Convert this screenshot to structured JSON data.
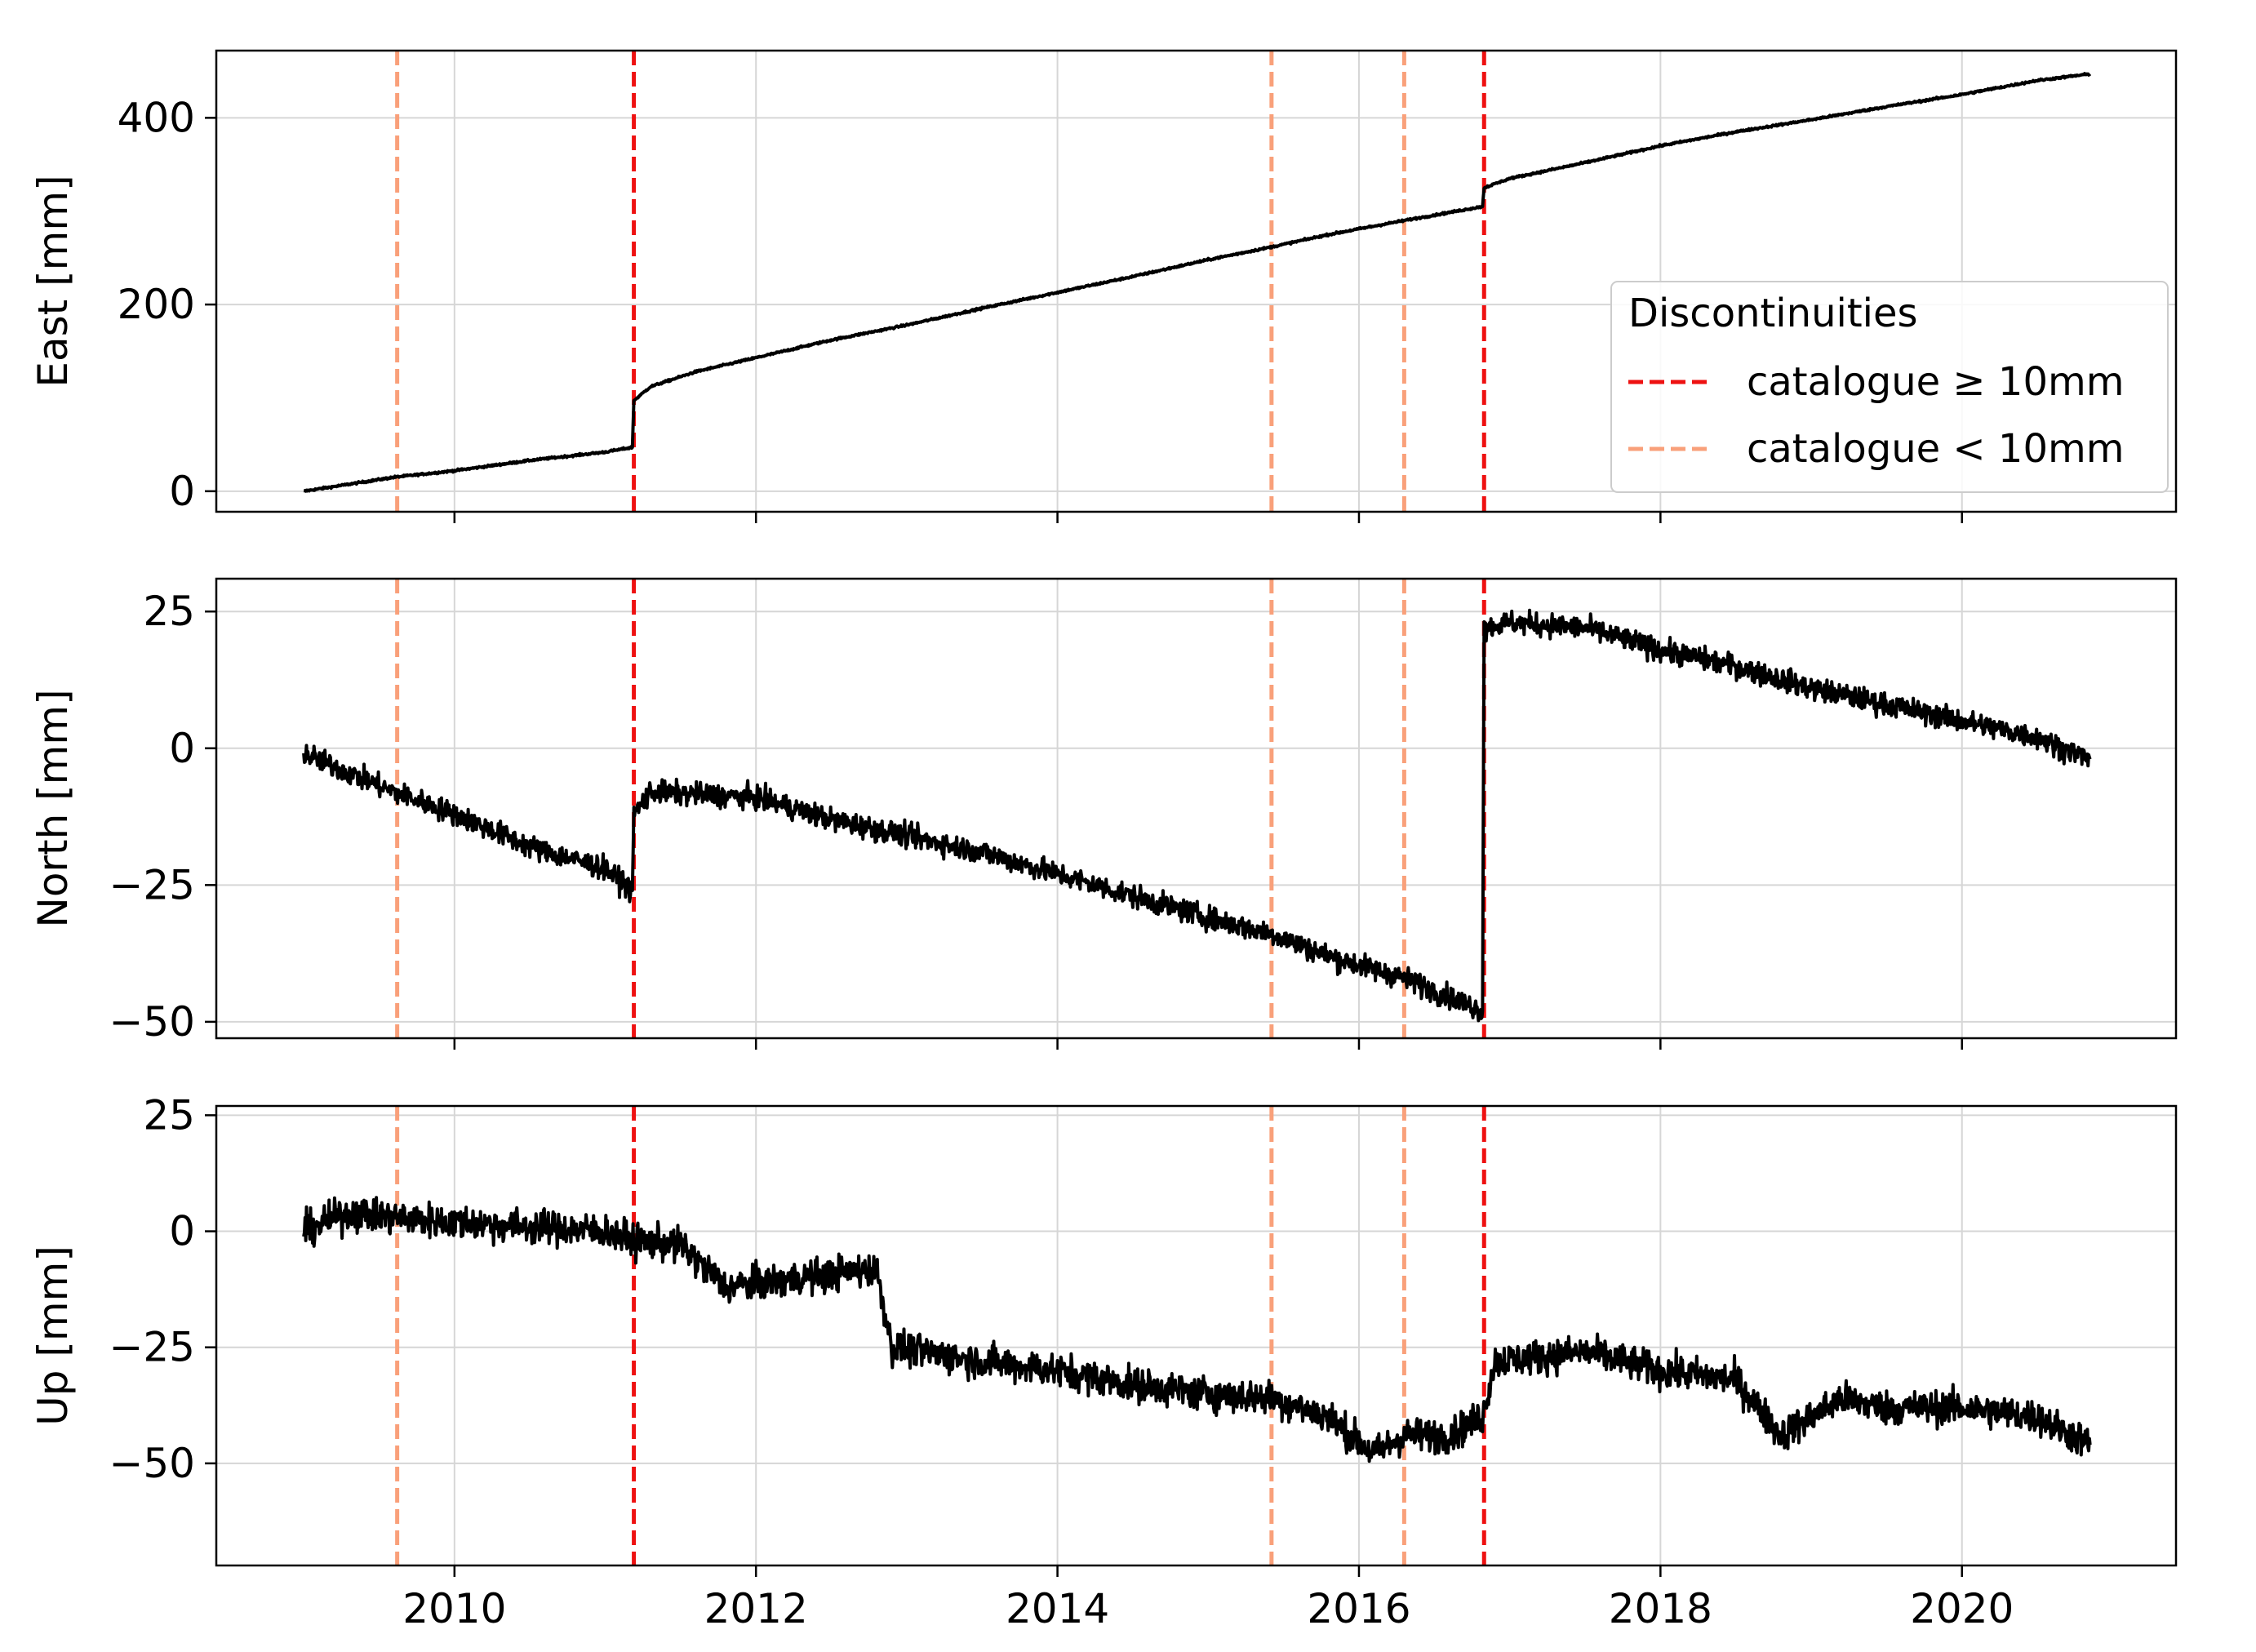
{
  "chart_data": [
    {
      "type": "line",
      "panel": "east",
      "ylabel": "East [mm]",
      "ylim": [
        -22,
        472
      ],
      "yticks": [
        0,
        200,
        400
      ],
      "ytick_labels": [
        "0",
        "200",
        "400"
      ],
      "series": [
        {
          "color": "#000000",
          "x": [
            2009.0,
            2009.6,
            2010.0,
            2010.5,
            2011.0,
            2011.18,
            2011.19,
            2011.3,
            2011.6,
            2012.0,
            2012.5,
            2013.0,
            2013.5,
            2014.0,
            2014.5,
            2015.0,
            2015.43,
            2015.8,
            2016.3,
            2016.82,
            2016.83,
            2017.0,
            2017.5,
            2018.0,
            2018.5,
            2019.0,
            2019.5,
            2020.0,
            2020.5,
            2020.85
          ],
          "y": [
            0,
            15,
            22,
            33,
            42,
            47,
            97,
            112,
            128,
            143,
            162,
            178,
            196,
            213,
            230,
            248,
            262,
            275,
            290,
            305,
            325,
            335,
            352,
            370,
            385,
            398,
            412,
            425,
            440,
            447
          ]
        }
      ],
      "noise_amplitude": 2
    },
    {
      "type": "line",
      "panel": "north",
      "ylabel": "North [mm]",
      "ylim": [
        -53,
        31
      ],
      "yticks": [
        -50,
        -25,
        0,
        25
      ],
      "ytick_labels": [
        "−50",
        "−25",
        "0",
        "25"
      ],
      "series": [
        {
          "color": "#000000",
          "x": [
            2009.0,
            2009.6,
            2010.0,
            2010.5,
            2011.0,
            2011.18,
            2011.19,
            2011.3,
            2012.0,
            2012.5,
            2013.0,
            2013.5,
            2014.0,
            2014.5,
            2015.0,
            2015.43,
            2015.8,
            2016.3,
            2016.82,
            2016.83,
            2017.0,
            2017.5,
            2018.0,
            2018.5,
            2019.0,
            2019.5,
            2020.0,
            2020.5,
            2020.85
          ],
          "y": [
            -1,
            -8,
            -12,
            -18,
            -22,
            -26,
            -12,
            -8,
            -9,
            -13,
            -16,
            -19,
            -23,
            -27,
            -31,
            -34,
            -38,
            -42,
            -48,
            22,
            23,
            22,
            18,
            15,
            11,
            8,
            5,
            2,
            -2
          ]
        }
      ],
      "noise_amplitude": 4
    },
    {
      "type": "line",
      "panel": "up",
      "ylabel": "Up [mm]",
      "ylim": [
        -72,
        27
      ],
      "yticks": [
        -50,
        -25,
        0,
        25
      ],
      "ytick_labels": [
        "−50",
        "−25",
        "0",
        "25"
      ],
      "series": [
        {
          "color": "#000000",
          "x": [
            2009.0,
            2009.3,
            2009.6,
            2010.0,
            2010.5,
            2011.0,
            2011.18,
            2011.5,
            2011.8,
            2012.3,
            2012.8,
            2012.9,
            2013.5,
            2014.0,
            2014.5,
            2015.0,
            2015.43,
            2015.8,
            2016.1,
            2016.3,
            2016.6,
            2016.82,
            2016.9,
            2017.5,
            2018.0,
            2018.5,
            2018.8,
            2019.2,
            2019.5,
            2020.0,
            2020.5,
            2020.85
          ],
          "y": [
            0,
            4,
            3,
            2,
            1,
            0,
            -2,
            -3,
            -12,
            -10,
            -8,
            -25,
            -28,
            -30,
            -33,
            -35,
            -36,
            -40,
            -48,
            -44,
            -44,
            -40,
            -28,
            -26,
            -30,
            -32,
            -44,
            -36,
            -38,
            -38,
            -40,
            -46
          ]
        }
      ],
      "noise_amplitude": 7
    }
  ],
  "shared_x": {
    "xlim": [
      2008.42,
      2021.42
    ],
    "xticks": [
      2010,
      2012,
      2014,
      2016,
      2018,
      2020
    ],
    "xtick_labels": [
      "2010",
      "2012",
      "2014",
      "2016",
      "2018",
      "2020"
    ]
  },
  "discontinuities": {
    "major": {
      "x": [
        2011.19,
        2016.83
      ],
      "color": "#ee1111"
    },
    "minor": {
      "x": [
        2009.62,
        2015.42,
        2016.3
      ],
      "color": "#f9a07a"
    }
  },
  "legend": {
    "title": "Discontinuities",
    "placement": "lower right of top panel",
    "entries": [
      {
        "label": "catalogue ≥ 10mm",
        "color": "#ee1111"
      },
      {
        "label": "catalogue < 10mm",
        "color": "#f9a07a"
      }
    ]
  }
}
